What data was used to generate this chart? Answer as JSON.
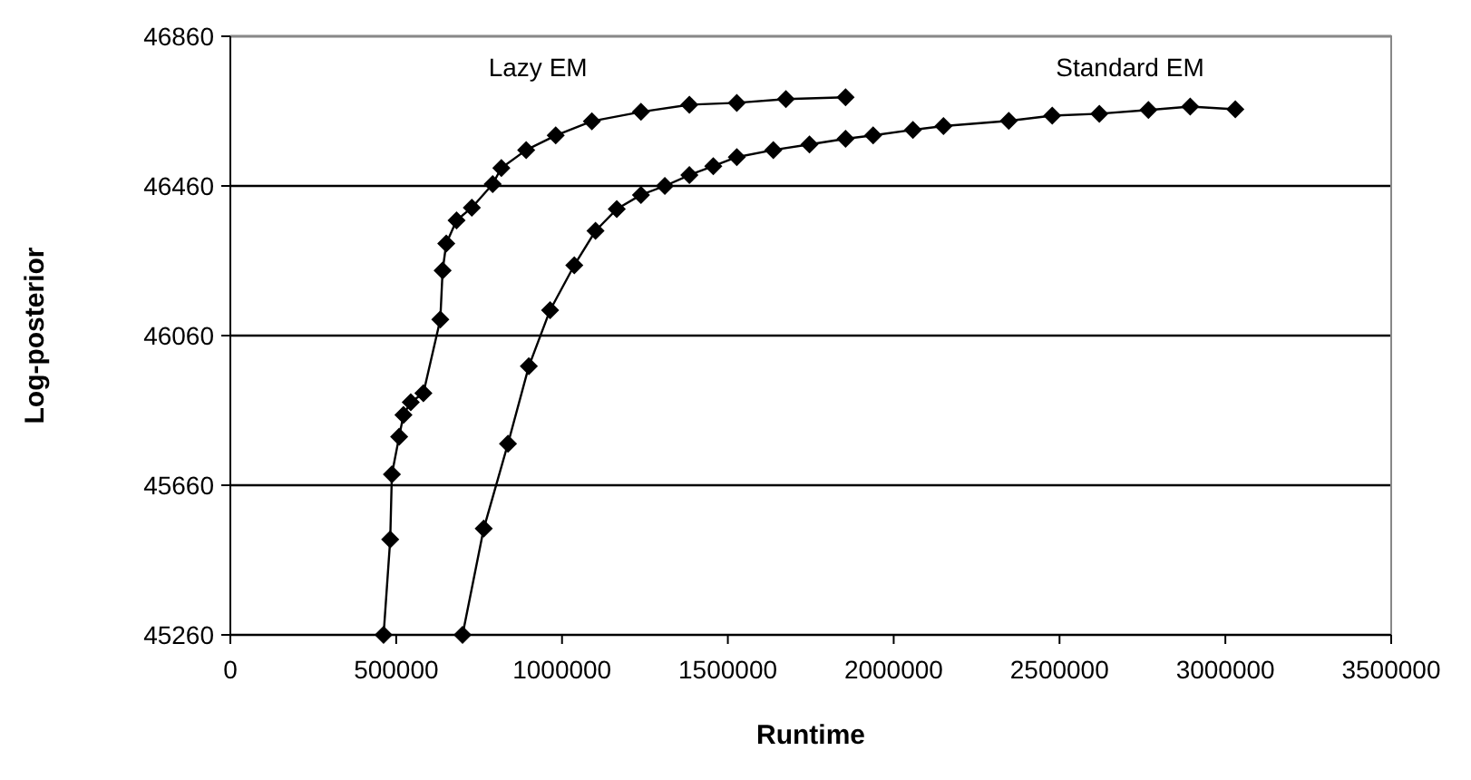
{
  "chart_data": {
    "type": "line",
    "xlabel": "Runtime",
    "ylabel": "Log-posterior",
    "xlim": [
      0,
      3500000
    ],
    "xticks": [
      0,
      500000,
      1000000,
      1500000,
      2000000,
      2500000,
      3000000,
      3500000
    ],
    "ylim": [
      45260,
      46860
    ],
    "yticks": [
      45260,
      45660,
      46060,
      46460,
      46860
    ],
    "grid": "y",
    "marker": "diamond",
    "line_style": "solid",
    "series": [
      {
        "name": "Lazy EM",
        "color": "#000000",
        "x": [
          462000,
          482000,
          487000,
          509000,
          522000,
          544000,
          582000,
          633000,
          640000,
          651000,
          682000,
          728000,
          791000,
          817000,
          892000,
          981000,
          1090000,
          1238000,
          1384000,
          1527000,
          1675000,
          1855000
        ],
        "values": [
          45260,
          45515,
          45689,
          45790,
          45848,
          45882,
          45906,
          46103,
          46234,
          46306,
          46368,
          46402,
          46465,
          46508,
          46556,
          46595,
          46633,
          46658,
          46677,
          46682,
          46692,
          46697
        ]
      },
      {
        "name": "Standard EM",
        "color": "#000000",
        "x": [
          700000,
          764000,
          837000,
          900000,
          964000,
          1037000,
          1101000,
          1165000,
          1238000,
          1310000,
          1384000,
          1456000,
          1527000,
          1637000,
          1746000,
          1855000,
          1938000,
          2058000,
          2150000,
          2347000,
          2478000,
          2620000,
          2768000,
          2894000,
          3030000
        ],
        "values": [
          45260,
          45544,
          45771,
          45978,
          46128,
          46248,
          46340,
          46398,
          46436,
          46460,
          46489,
          46513,
          46537,
          46556,
          46571,
          46586,
          46595,
          46610,
          46620,
          46634,
          46648,
          46653,
          46663,
          46672,
          46665
        ]
      }
    ]
  }
}
